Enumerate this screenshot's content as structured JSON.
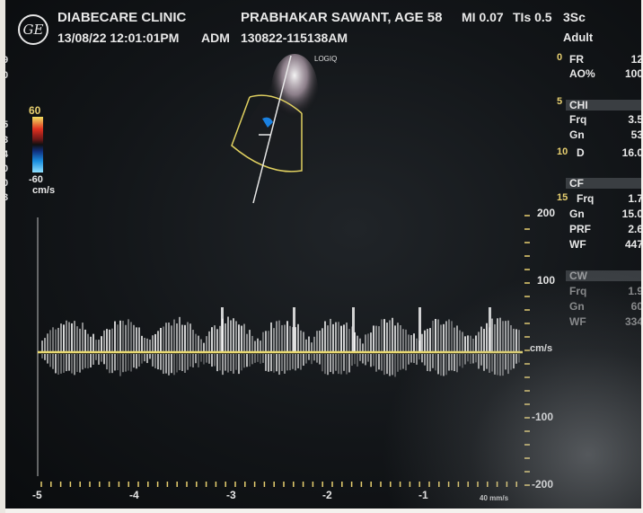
{
  "header": {
    "logo_text": "GE",
    "clinic": "DIABECARE CLINIC",
    "datetime": "13/08/22 12:01:01PM",
    "mode": "ADM",
    "patient": "PRABHAKAR SAWANT, AGE 58",
    "study_id": "130822-115138AM",
    "mi": "MI 0.07",
    "tis": "TIs 0.5",
    "probe": "3Sc",
    "preset": "Adult"
  },
  "left_clipped": [
    "9",
    "0",
    "5",
    "3",
    "4",
    "0",
    "0",
    "3"
  ],
  "color_bar": {
    "top": "60",
    "bottom": "-60",
    "unit": "cm/s"
  },
  "image_view": {
    "brand": "LOGIQ"
  },
  "params": {
    "depth_ticks": [
      "0",
      "5",
      "10",
      "15"
    ],
    "general": [
      {
        "key": "FR",
        "value": "12"
      },
      {
        "key": "AO%",
        "value": "100"
      }
    ],
    "chi": [
      {
        "key": "CHI",
        "value": ""
      },
      {
        "key": "Frq",
        "value": "3.5"
      },
      {
        "key": "Gn",
        "value": "53"
      },
      {
        "key": "D",
        "value": "16.0"
      }
    ],
    "cf": [
      {
        "key": "CF",
        "value": ""
      },
      {
        "key": "Frq",
        "value": "1.7"
      },
      {
        "key": "Gn",
        "value": "15.0"
      },
      {
        "key": "PRF",
        "value": "2.6"
      },
      {
        "key": "WF",
        "value": "447"
      }
    ],
    "cw": [
      {
        "key": "CW",
        "value": ""
      },
      {
        "key": "Frq",
        "value": "1.9"
      },
      {
        "key": "Gn",
        "value": "60"
      },
      {
        "key": "WF",
        "value": "334"
      }
    ]
  },
  "doppler": {
    "velocity_labels": [
      "200",
      "100",
      "cm/s",
      "-100",
      "-200"
    ],
    "time_labels": [
      "-5",
      "-4",
      "-3",
      "-2",
      "-1"
    ],
    "sweep_speed": "40 mm/s",
    "colors": {
      "baseline": "#e8d870",
      "scale": "#e8d070",
      "spectrum": "#f2f2f2"
    }
  }
}
